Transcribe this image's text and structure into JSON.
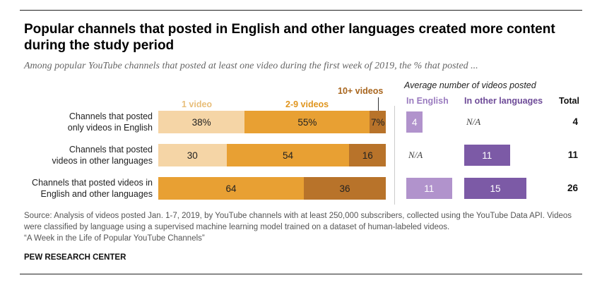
{
  "title": "Popular channels that posted in English and other languages created more content during the study period",
  "subtitle": "Among popular YouTube channels that posted at least one video during the first week of 2019, the % that posted ...",
  "colors": {
    "one_video": "#f5d5a6",
    "two_to_nine": "#e8a033",
    "ten_plus": "#b8732a",
    "in_english": "#b193cc",
    "other_languages": "#7c5aa6",
    "hdr_one": "#e8be7a",
    "hdr_two": "#e0951e",
    "hdr_ten": "#a8651d",
    "hdr_english": "#9a7bbf",
    "hdr_other": "#6e4b98"
  },
  "chart_data": [
    {
      "type": "bar",
      "stacked": true,
      "orientation": "horizontal",
      "categories": [
        "Channels that posted only videos in English",
        "Channels that posted videos in other languages",
        "Channels that posted videos in English and other languages"
      ],
      "series": [
        {
          "name": "1 video",
          "values": [
            38,
            30,
            null
          ],
          "labels": [
            "38%",
            "30",
            ""
          ]
        },
        {
          "name": "2-9 videos",
          "values": [
            55,
            54,
            64
          ],
          "labels": [
            "55%",
            "54",
            "64"
          ]
        },
        {
          "name": "10+ videos",
          "values": [
            7,
            16,
            36
          ],
          "labels": [
            "7%",
            "16",
            "36"
          ]
        }
      ],
      "xlim": [
        0,
        100
      ]
    },
    {
      "type": "table",
      "title": "Average number of videos posted",
      "columns": [
        "In English",
        "In other languages",
        "Total"
      ],
      "rows": [
        {
          "in_english": 4,
          "in_english_label": "4",
          "other": null,
          "other_label": "N/A",
          "total": "4"
        },
        {
          "in_english": null,
          "in_english_label": "N/A",
          "other": 11,
          "other_label": "11",
          "total": "11"
        },
        {
          "in_english": 11,
          "in_english_label": "11",
          "other": 15,
          "other_label": "15",
          "total": "26"
        }
      ]
    }
  ],
  "row_label_lines": [
    [
      "Channels that posted",
      "only videos in English"
    ],
    [
      "Channels that posted",
      "videos in other languages"
    ],
    [
      "Channels that posted videos in",
      "English and other languages"
    ]
  ],
  "source": "Source: Analysis of videos posted Jan. 1-7, 2019, by YouTube channels with at least 250,000 subscribers, collected using the YouTube Data API. Videos were classified by language using a supervised machine learning model trained on a dataset of human-labeled videos.",
  "report": "“A Week in the Life of Popular YouTube Channels”",
  "brand": "PEW RESEARCH CENTER"
}
